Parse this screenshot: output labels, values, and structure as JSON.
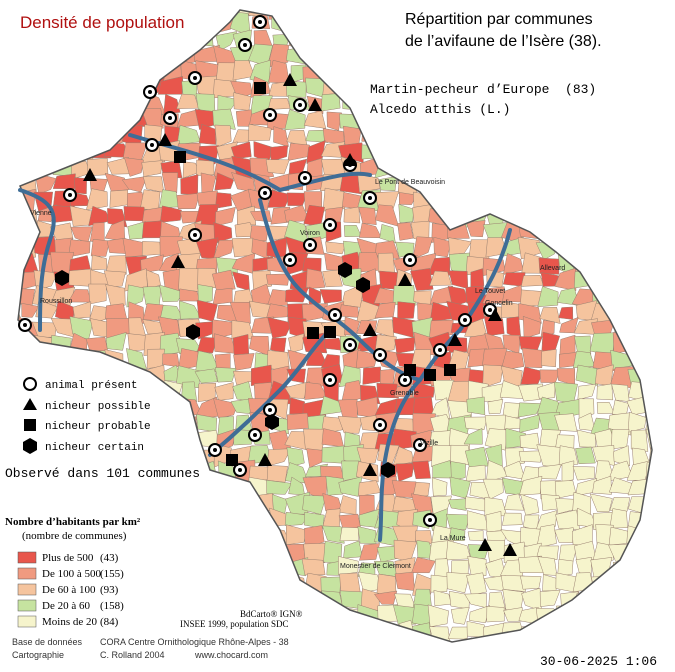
{
  "title": "Densité de population",
  "heading": [
    "Répartition par communes",
    "de l’avifaune de l’Isère (38)."
  ],
  "species": [
    "Martin-pecheur d’Europe  (83)",
    "Alcedo atthis (L.)"
  ],
  "symbols": [
    "animal présent",
    "nicheur possible",
    "nicheur probable",
    "nicheur certain"
  ],
  "observed": "Observé dans 101 communes",
  "density_legend": {
    "title": "Nombre d’habitants par km²",
    "subtitle": "(nombre de communes)",
    "classes": [
      {
        "label": "Plus de 500",
        "count": "(43)",
        "color": "#e8564c"
      },
      {
        "label": "De 100 à 500",
        "count": "(155)",
        "color": "#f09a80"
      },
      {
        "label": "De 60 à 100",
        "count": "(93)",
        "color": "#f5c49e"
      },
      {
        "label": "De 20 à 60",
        "count": "(158)",
        "color": "#c6e3a0"
      },
      {
        "label": "Moins de 20",
        "count": "(84)",
        "color": "#f6f4cc"
      }
    ]
  },
  "credits": {
    "sources": [
      "BdCarto® IGN®",
      "INSEE 1999, population SDC"
    ],
    "database_label": "Base de données",
    "database": "CORA Centre Ornithologique Rhône-Alpes - 38",
    "cartography_label": "Cartographie",
    "cartography": "C. Rolland 2004",
    "website": "www.chocard.com"
  },
  "towns": [
    "Vienne",
    "Roussillon",
    "Le Pont de Beauvoisin",
    "Allevard",
    "Le Touvet",
    "Goncelin",
    "Vizille",
    "La Mure",
    "Monestier de Clermont",
    "Voiron",
    "Grenoble"
  ],
  "date": "30-06-2025 1:06"
}
